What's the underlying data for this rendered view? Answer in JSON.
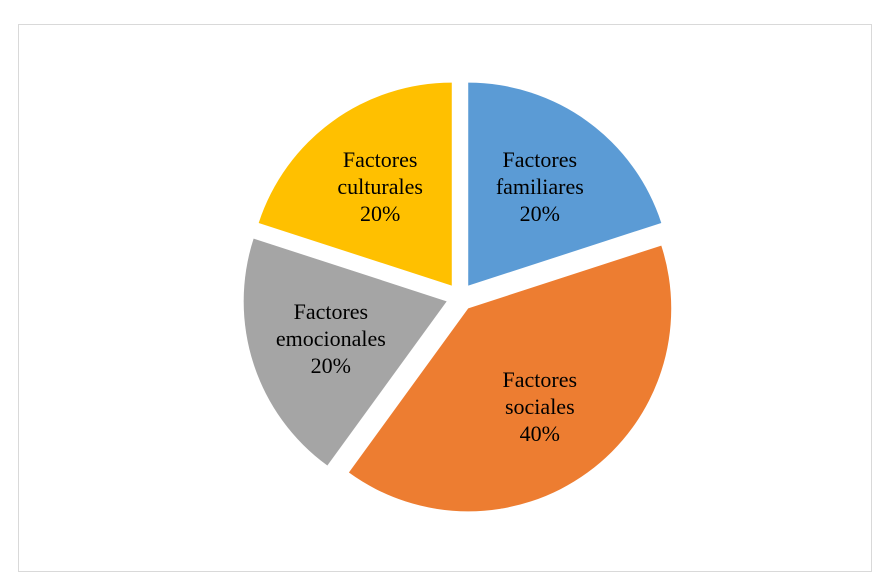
{
  "chart_data": {
    "type": "pie",
    "categories": [
      "Factores familiares",
      "Factores sociales",
      "Factores emocionales",
      "Factores culturales"
    ],
    "values": [
      20,
      40,
      20,
      20
    ],
    "label_lines": [
      [
        "Factores",
        "familiares",
        "20%"
      ],
      [
        "Factores",
        "sociales",
        "40%"
      ],
      [
        "Factores",
        "emocionales",
        "20%"
      ],
      [
        "Factores",
        "culturales",
        "20%"
      ]
    ],
    "colors": [
      "#5b9bd5",
      "#ed7d31",
      "#a5a5a5",
      "#ffc000"
    ],
    "exploded": true,
    "legend": "none",
    "title": ""
  }
}
